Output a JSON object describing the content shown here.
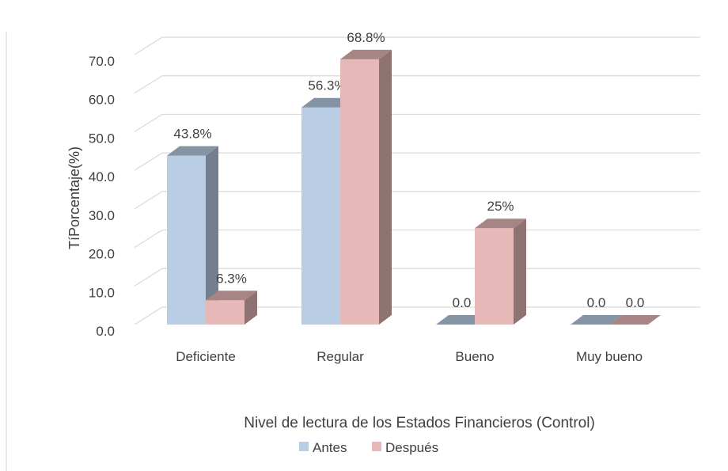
{
  "chart_data": {
    "type": "bar3d",
    "x_label": "Nivel de lectura de los Estados Financieros (Control)",
    "y_label": "TíPorcentaje(%)",
    "categories": [
      "Deficiente",
      "Regular",
      "Bueno",
      "Muy bueno"
    ],
    "series": [
      {
        "name": "Antes",
        "color": "#b9cde5",
        "values": [
          43.8,
          56.3,
          0,
          0
        ],
        "value_labels": [
          "43.8%",
          "56.3%",
          "0.0",
          "0.0"
        ]
      },
      {
        "name": "Después",
        "color": "#e6b9b8",
        "values": [
          6.3,
          68.8,
          25,
          0
        ],
        "value_labels": [
          "6.3%",
          "68.8%",
          "25%",
          "0.0"
        ]
      }
    ],
    "ylim": [
      0,
      70
    ],
    "yticks": [
      {
        "value": 0,
        "label": "0.0"
      },
      {
        "value": 10,
        "label": "10.0"
      },
      {
        "value": 20,
        "label": "20.0"
      },
      {
        "value": 30,
        "label": "30.0"
      },
      {
        "value": 40,
        "label": "40.0"
      },
      {
        "value": 50,
        "label": "50.0"
      },
      {
        "value": 60,
        "label": "60.0"
      },
      {
        "value": 70,
        "label": "70.0"
      }
    ],
    "grid": true,
    "legend": "bottom"
  }
}
